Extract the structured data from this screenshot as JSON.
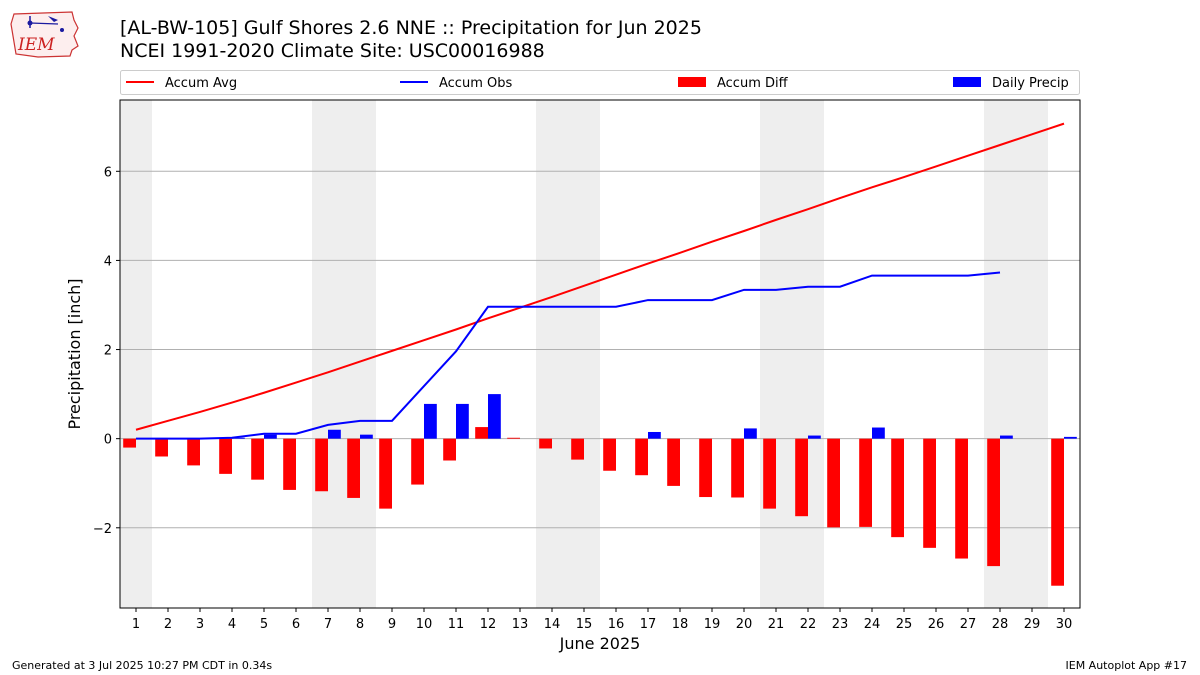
{
  "header": {
    "title_line1": "[AL-BW-105] Gulf Shores 2.6 NNE :: Precipitation for Jun 2025",
    "title_line2": "NCEI 1991-2020 Climate Site: USC00016988",
    "logo_text": "IEM"
  },
  "footer": {
    "generated": "Generated at 3 Jul 2025 10:27 PM CDT in 0.34s",
    "app": "IEM Autoplot App #17"
  },
  "chart_data": {
    "type": "bar",
    "xlabel": "June 2025",
    "ylabel": "Precipitation [inch]",
    "xlim": [
      0.5,
      30.5
    ],
    "ylim": [
      -3.8,
      7.6
    ],
    "x_ticks": [
      1,
      2,
      3,
      4,
      5,
      6,
      7,
      8,
      9,
      10,
      11,
      12,
      13,
      14,
      15,
      16,
      17,
      18,
      19,
      20,
      21,
      22,
      23,
      24,
      25,
      26,
      27,
      28,
      29,
      30
    ],
    "y_ticks": [
      -2,
      0,
      2,
      4,
      6
    ],
    "grid": "horizontal",
    "legend_placement": "top",
    "weekend_shading": [
      [
        0.5,
        1.5
      ],
      [
        6.5,
        8.5
      ],
      [
        13.5,
        15.5
      ],
      [
        20.5,
        22.5
      ],
      [
        27.5,
        29.5
      ]
    ],
    "series": [
      {
        "name": "Accum Avg",
        "kind": "line",
        "color": "#ff0000",
        "x": [
          1,
          2,
          3,
          4,
          5,
          6,
          7,
          8,
          9,
          10,
          11,
          12,
          13,
          14,
          15,
          16,
          17,
          18,
          19,
          20,
          21,
          22,
          23,
          24,
          25,
          26,
          27,
          28,
          29,
          30
        ],
        "values": [
          0.2,
          0.4,
          0.6,
          0.81,
          1.03,
          1.26,
          1.49,
          1.73,
          1.97,
          2.21,
          2.45,
          2.7,
          2.94,
          3.18,
          3.43,
          3.68,
          3.93,
          4.17,
          4.42,
          4.66,
          4.91,
          5.15,
          5.4,
          5.64,
          5.87,
          6.11,
          6.35,
          6.59,
          6.83,
          7.07
        ]
      },
      {
        "name": "Accum Obs",
        "kind": "line",
        "color": "#0000ff",
        "x": [
          1,
          2,
          3,
          4,
          5,
          6,
          7,
          8,
          9,
          10,
          11,
          12,
          13,
          14,
          15,
          16,
          17,
          18,
          19,
          20,
          21,
          22,
          23,
          24,
          25,
          26,
          27,
          28
        ],
        "values": [
          0,
          0,
          0,
          0.02,
          0.11,
          0.11,
          0.31,
          0.4,
          0.4,
          1.18,
          1.96,
          2.96,
          2.96,
          2.96,
          2.96,
          2.96,
          3.11,
          3.11,
          3.11,
          3.34,
          3.34,
          3.41,
          3.41,
          3.66,
          3.66,
          3.66,
          3.66,
          3.73
        ]
      },
      {
        "name": "Accum Diff",
        "kind": "bar",
        "color": "#ff0000",
        "offset": -0.2,
        "x": [
          1,
          2,
          3,
          4,
          5,
          6,
          7,
          8,
          9,
          10,
          11,
          12,
          13,
          14,
          15,
          16,
          17,
          18,
          19,
          20,
          21,
          22,
          23,
          24,
          25,
          26,
          27,
          28,
          30
        ],
        "values": [
          -0.2,
          -0.4,
          -0.6,
          -0.79,
          -0.92,
          -1.15,
          -1.18,
          -1.33,
          -1.57,
          -1.03,
          -0.49,
          0.26,
          0.02,
          -0.22,
          -0.47,
          -0.72,
          -0.82,
          -1.06,
          -1.31,
          -1.32,
          -1.57,
          -1.74,
          -1.99,
          -1.98,
          -2.21,
          -2.45,
          -2.69,
          -2.86,
          -3.3
        ]
      },
      {
        "name": "Daily Precip",
        "kind": "bar",
        "color": "#0000ff",
        "offset": 0.2,
        "x": [
          4,
          5,
          7,
          8,
          10,
          11,
          12,
          17,
          20,
          22,
          24,
          28,
          30
        ],
        "values": [
          0.02,
          0.09,
          0.2,
          0.09,
          0.78,
          0.78,
          1.0,
          0.15,
          0.23,
          0.07,
          0.25,
          0.07,
          0.04
        ]
      }
    ]
  }
}
